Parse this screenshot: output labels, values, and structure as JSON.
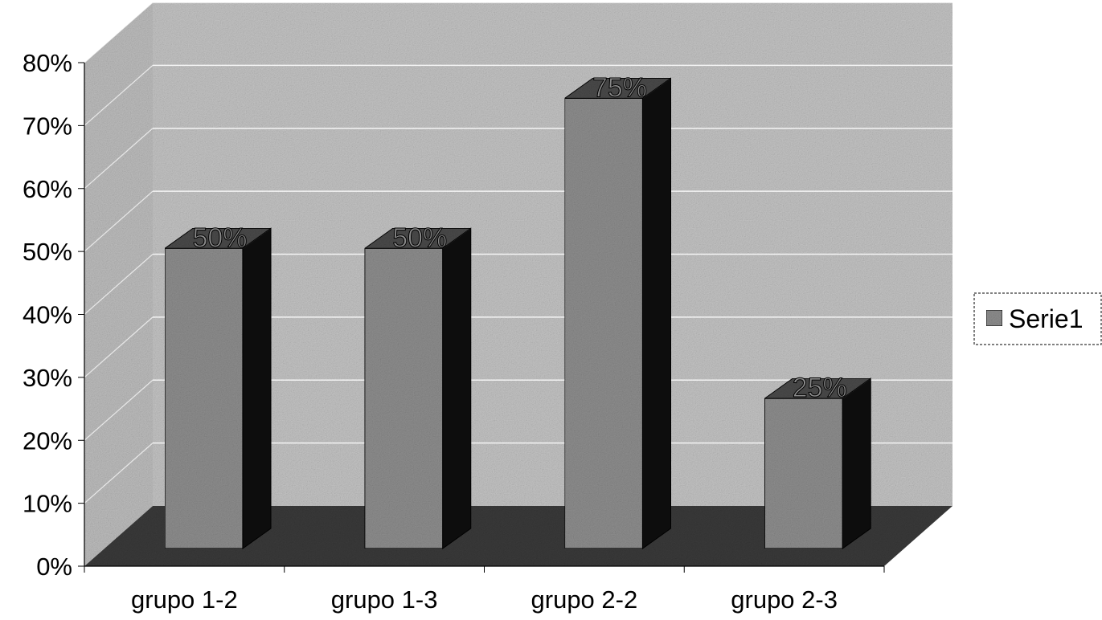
{
  "chart_data": {
    "type": "bar",
    "categories": [
      "grupo 1-2",
      "grupo 1-3",
      "grupo 2-2",
      "grupo 2-3"
    ],
    "series": [
      {
        "name": "Serie1",
        "values": [
          50,
          50,
          75,
          25
        ]
      }
    ],
    "data_labels": [
      "50%",
      "50%",
      "75%",
      "25%"
    ],
    "y_ticks": [
      "0%",
      "10%",
      "20%",
      "30%",
      "40%",
      "50%",
      "60%",
      "70%",
      "80%"
    ],
    "ylim": [
      0,
      80
    ],
    "grid": true,
    "legend_position": "right",
    "title": "",
    "xlabel": "",
    "ylabel": "",
    "style": "3d-column"
  },
  "legend": {
    "label": "Serie1"
  },
  "colors": {
    "back_wall": "#c4c4c4",
    "side_wall": "#bdbdbd",
    "floor": "#3a3a3a",
    "bar_front": "#8e8e8e",
    "bar_top": "#4a4a4a",
    "bar_side": "#0d0d0d",
    "grid": "#ffffff"
  }
}
